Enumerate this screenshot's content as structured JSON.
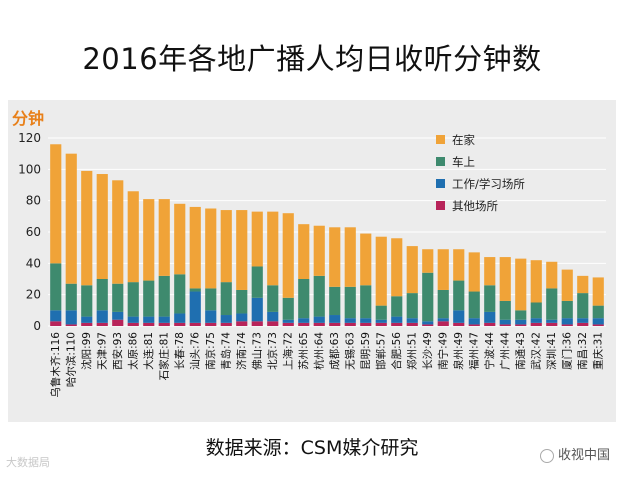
{
  "title": "2016年各地广播人均日收听分钟数",
  "source": "数据来源：CSM媒介研究",
  "watermark_left": "大数据局",
  "watermark_right": "收视中国",
  "colors": {
    "home": "#f0a338",
    "car": "#3e8a6e",
    "work": "#1f6fb0",
    "other": "#b8245a",
    "unit": "#e8801a"
  },
  "chart_data": {
    "type": "bar",
    "stacked": true,
    "ylabel": "分钟",
    "ylim": [
      0,
      120
    ],
    "yticks": [
      0,
      20,
      40,
      60,
      80,
      100,
      120
    ],
    "legend_position": "top-right",
    "categories": [
      "乌鲁木齐:116",
      "哈尔滨:110",
      "沈阳:99",
      "天津:97",
      "西安:93",
      "太原:86",
      "大连:81",
      "石家庄:81",
      "长春:78",
      "汕头:76",
      "南京:75",
      "青岛:74",
      "济南:74",
      "佛山:73",
      "北京:73",
      "上海:72",
      "苏州:65",
      "杭州:64",
      "成都:63",
      "无锡:63",
      "昆明:59",
      "邯郸:57",
      "合肥:56",
      "郑州:51",
      "长沙:49",
      "南宁:49",
      "泉州:49",
      "福州:47",
      "宁波:44",
      "广州:44",
      "南通:43",
      "武汉:42",
      "深圳:41",
      "厦门:36",
      "南昌:32",
      "重庆:31"
    ],
    "totals": [
      116,
      110,
      99,
      97,
      93,
      86,
      81,
      81,
      78,
      76,
      75,
      74,
      74,
      73,
      73,
      72,
      65,
      64,
      63,
      63,
      59,
      57,
      56,
      51,
      49,
      49,
      49,
      47,
      44,
      44,
      43,
      42,
      41,
      36,
      32,
      31
    ],
    "series": [
      {
        "name": "在家",
        "values": [
          76,
          83,
          73,
          67,
          66,
          58,
          52,
          49,
          45,
          52,
          51,
          46,
          51,
          35,
          47,
          54,
          35,
          32,
          38,
          38,
          33,
          44,
          37,
          30,
          15,
          26,
          20,
          25,
          18,
          28,
          33,
          27,
          17,
          20,
          11,
          18
        ]
      },
      {
        "name": "车上",
        "values": [
          30,
          17,
          20,
          20,
          18,
          22,
          23,
          26,
          25,
          2,
          14,
          21,
          15,
          20,
          17,
          14,
          25,
          26,
          18,
          20,
          21,
          9,
          13,
          16,
          31,
          18,
          19,
          17,
          17,
          12,
          6,
          10,
          20,
          11,
          16,
          8
        ]
      },
      {
        "name": "工作/学习场所",
        "values": [
          7,
          9,
          4,
          8,
          5,
          4,
          4,
          4,
          6,
          20,
          8,
          5,
          5,
          15,
          6,
          2,
          3,
          4,
          5,
          3,
          3,
          2,
          4,
          3,
          2,
          2,
          8,
          4,
          7,
          3,
          3,
          3,
          2,
          4,
          3,
          4
        ]
      },
      {
        "name": "其他场所",
        "values": [
          3,
          1,
          2,
          2,
          4,
          2,
          2,
          2,
          2,
          2,
          2,
          2,
          3,
          3,
          3,
          2,
          2,
          2,
          2,
          2,
          2,
          2,
          2,
          2,
          1,
          3,
          2,
          1,
          2,
          1,
          1,
          2,
          2,
          1,
          2,
          1
        ]
      }
    ]
  }
}
